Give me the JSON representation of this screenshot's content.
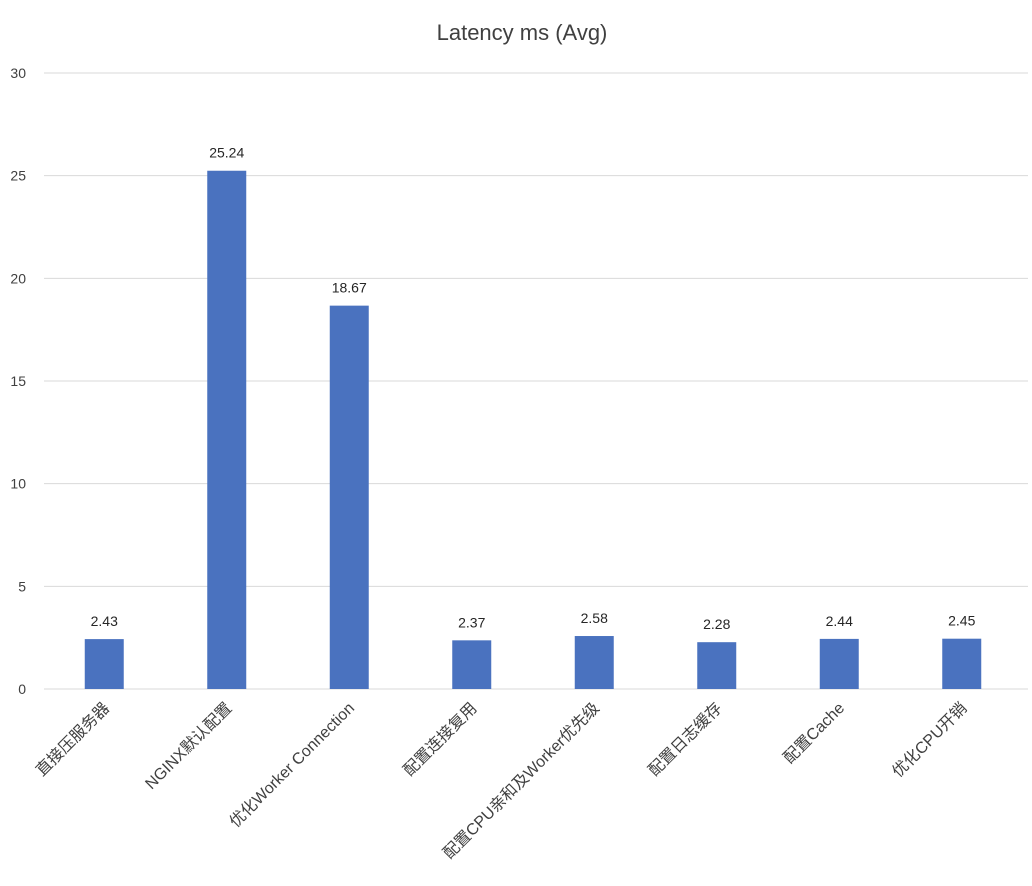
{
  "chart_data": {
    "type": "bar",
    "title": "Latency ms (Avg)",
    "categories": [
      "直接压服务器",
      "NGINX默认配置",
      "优化Worker Connection",
      "配置连接复用",
      "配置CPU亲和及Worker优先级",
      "配置日志缓存",
      "配置Cache",
      "优化CPU开销"
    ],
    "values": [
      2.43,
      25.24,
      18.67,
      2.37,
      2.58,
      2.28,
      2.44,
      2.45
    ],
    "value_labels": [
      "2.43",
      "25.24",
      "18.67",
      "2.37",
      "2.58",
      "2.28",
      "2.44",
      "2.45"
    ],
    "ylim": [
      0,
      30
    ],
    "yticks": [
      0,
      5,
      10,
      15,
      20,
      25,
      30
    ],
    "xlabel": "",
    "ylabel": "",
    "grid": true,
    "legend": "none",
    "bar_color": "#4a72bf"
  }
}
